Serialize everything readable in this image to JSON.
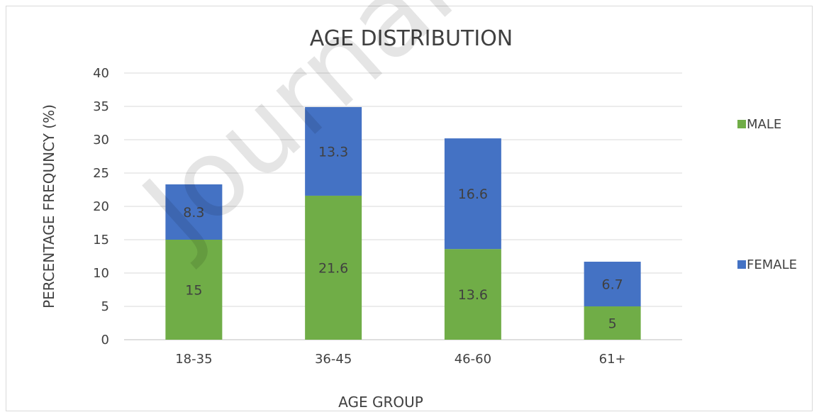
{
  "chart_data": {
    "type": "bar",
    "stacked": true,
    "title": "AGE DISTRIBUTION",
    "xlabel": "AGE GROUP",
    "ylabel": "PERCENTAGE  FREQUNCY (%)",
    "categories": [
      "18-35",
      "36-45",
      "46-60",
      "61+"
    ],
    "series": [
      {
        "name": "MALE",
        "color": "#70ad47",
        "values": [
          15,
          21.6,
          13.6,
          5
        ]
      },
      {
        "name": "FEMALE",
        "color": "#4472c4",
        "values": [
          8.3,
          13.3,
          16.6,
          6.7
        ]
      }
    ],
    "ylim": [
      0,
      40
    ],
    "yticks": [
      0,
      5,
      10,
      15,
      20,
      25,
      30,
      35,
      40
    ],
    "grid": true,
    "legend_position": "right"
  },
  "watermark": "Journal Pre-proof"
}
